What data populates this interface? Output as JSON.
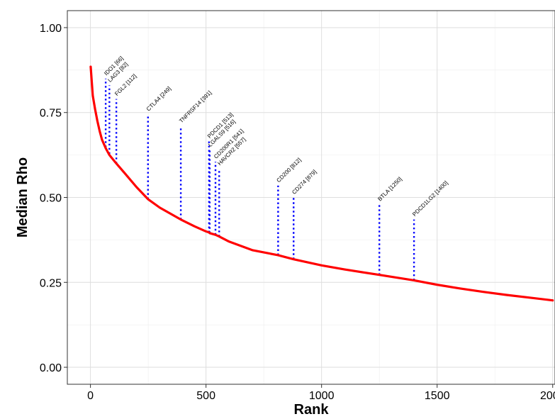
{
  "chart_data": {
    "type": "line",
    "xlabel": "Rank",
    "ylabel": "Median Rho",
    "xlim": [
      -100,
      2010
    ],
    "ylim": [
      -0.05,
      1.05
    ],
    "x_ticks": [
      0,
      500,
      1000,
      1500,
      2000
    ],
    "x_tick_labels": [
      "0",
      "500",
      "1000",
      "1500",
      "2000"
    ],
    "y_ticks": [
      0,
      0.25,
      0.5,
      0.75,
      1
    ],
    "y_tick_labels": [
      "0.00",
      "0.25",
      "0.50",
      "0.75",
      "1.00"
    ],
    "grid": true,
    "legend": "none",
    "colors": {
      "line": "#ff0000",
      "annotation": "#0000ff",
      "grid_major": "#dedede",
      "grid_minor": "#eeeeee",
      "border": "#333333"
    },
    "series": [
      {
        "x": [
          1,
          10,
          20,
          30,
          40,
          50,
          66,
          82,
          112,
          150,
          200,
          249,
          300,
          391,
          450,
          500,
          513,
          516,
          541,
          557,
          600,
          700,
          812,
          879,
          1000,
          1100,
          1250,
          1400,
          1500,
          1600,
          1700,
          1800,
          1900,
          2000
        ],
        "y": [
          0.885,
          0.8,
          0.76,
          0.725,
          0.695,
          0.67,
          0.645,
          0.625,
          0.6,
          0.57,
          0.53,
          0.495,
          0.47,
          0.435,
          0.415,
          0.4,
          0.397,
          0.395,
          0.39,
          0.385,
          0.37,
          0.345,
          0.33,
          0.318,
          0.3,
          0.288,
          0.272,
          0.256,
          0.243,
          0.232,
          0.222,
          0.213,
          0.205,
          0.197
        ]
      }
    ],
    "annotations": [
      {
        "label": "IDO1 [66]",
        "x": 66,
        "y_bottom": 0.648,
        "y_top": 0.85
      },
      {
        "label": "LAG3 [82]",
        "x": 82,
        "y_bottom": 0.628,
        "y_top": 0.83
      },
      {
        "label": "FGL2 [112]",
        "x": 112,
        "y_bottom": 0.6,
        "y_top": 0.79
      },
      {
        "label": "CTLA4 [249]",
        "x": 249,
        "y_bottom": 0.495,
        "y_top": 0.745
      },
      {
        "label": "TNFRSF14 [391]",
        "x": 391,
        "y_bottom": 0.435,
        "y_top": 0.71
      },
      {
        "label": "PDCD1 [513]",
        "x": 513,
        "y_bottom": 0.397,
        "y_top": 0.665
      },
      {
        "label": "LGALS9 [516]",
        "x": 516,
        "y_bottom": 0.395,
        "y_top": 0.64
      },
      {
        "label": "CD200R1 [541]",
        "x": 541,
        "y_bottom": 0.39,
        "y_top": 0.605
      },
      {
        "label": "HAVCR2 [557]",
        "x": 557,
        "y_bottom": 0.385,
        "y_top": 0.585
      },
      {
        "label": "CD200 [812]",
        "x": 812,
        "y_bottom": 0.33,
        "y_top": 0.535
      },
      {
        "label": "CD274 [879]",
        "x": 879,
        "y_bottom": 0.318,
        "y_top": 0.5
      },
      {
        "label": "BTLA [1250]",
        "x": 1250,
        "y_bottom": 0.272,
        "y_top": 0.48
      },
      {
        "label": "PDCD1LG2 [1400]",
        "x": 1400,
        "y_bottom": 0.256,
        "y_top": 0.435
      }
    ]
  }
}
